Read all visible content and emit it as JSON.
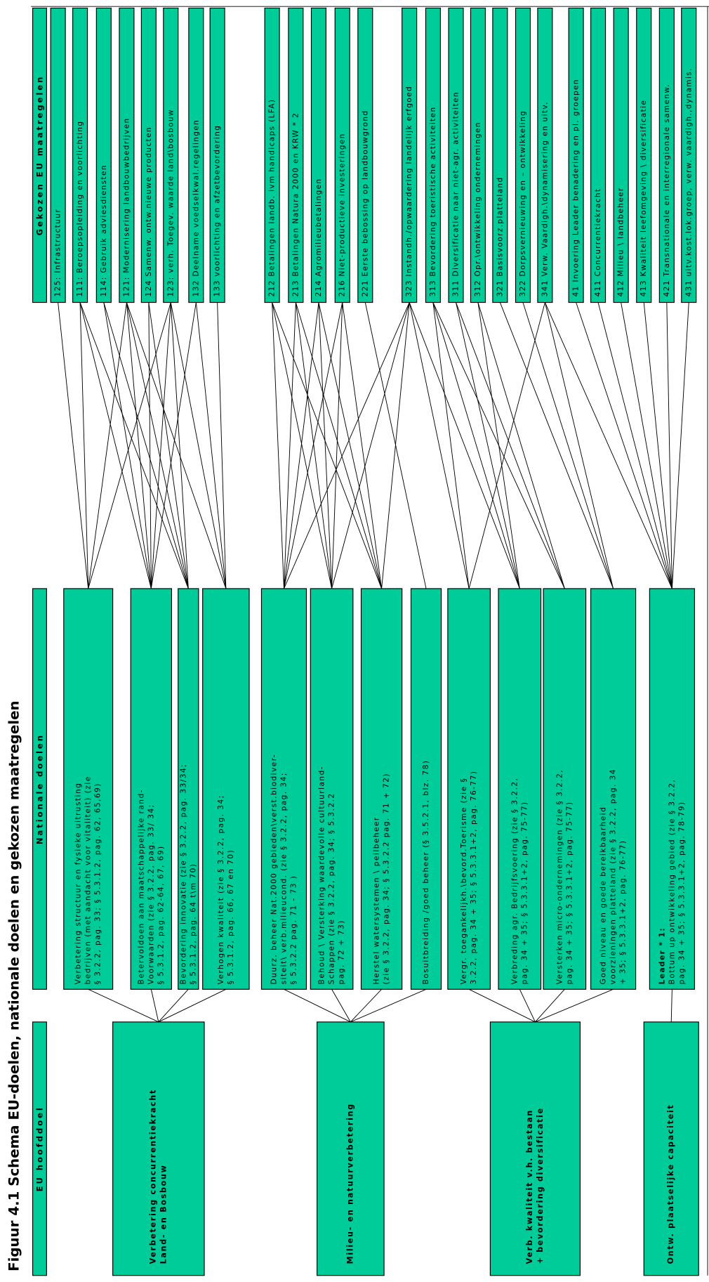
{
  "title": "Figuur 4.1 Schema EU-doelen, nationale doelen en gekozen maatregelen",
  "headers": {
    "eu_hoofddoel": "EU hoofddoel",
    "nationale_doelen": "Nationale doelen",
    "gekozen_maatregelen": "Gekozen EU maatregelen"
  },
  "hoofddoelen": [
    {
      "lines": [
        "Verbetering concurrentiekracht",
        "Land- en Bosbouw"
      ]
    },
    {
      "lines": [
        "Milieu- en natuurverbetering"
      ]
    },
    {
      "lines": [
        "Verb. kwaliteit v.h. bestaan",
        "+ bevordering diversificatie"
      ]
    },
    {
      "lines": [
        "Ontw. plaatselijke capaciteit"
      ]
    }
  ],
  "nationale_doelen": [
    {
      "lines": [
        "Verbetering structuur en fysieke uitrusting",
        "bedrijven (met aandacht voor vitaliteit) (zie",
        "§ 3.2.2, pag. 33; § 5.3.1.2, pag. 62, 65,69)"
      ]
    },
    {
      "lines": [
        "Betervoldoen aan maatschappelijke rand-",
        "Voorwaarden (zie § 3.2.2, pag. 33/ 34;",
        "§ 5.3.1.2, pag. 62-64, 67, 69)"
      ]
    },
    {
      "lines": [
        "Bevordering innovatie (zie § 3.2.2, pag. 33/34;",
        "§ 5.3.1.2, pag. 64 t\\m 70)"
      ]
    },
    {
      "lines": [
        "Verhogen kwaliteit (zie § 3.2.2, pag. 34;",
        "§ 5.3.1.2, pag. 66, 67 en 70)"
      ]
    },
    {
      "lines": [
        "Duurz. beheer Nat.2000 gebieden\\verst.biodiver-",
        "siteit\\ verb.milieucond. (zie § 3.2.2, pag. 34;",
        "§ 5.3.2.2 pag. 71 - 73 )"
      ]
    },
    {
      "lines": [
        "Behoud \\ Versterking waardevolle cultuurland-",
        "Schappen (zie § 3.2.2, pag. 34; § 5.3.2.2",
        "pag. 72 + 73)"
      ]
    },
    {
      "lines": [
        "Herstel watersystemen \\ peilbeheer",
        "(zie § 3.2.2, pag. 34; § 5.3.2.2 pag. 71 + 72)"
      ]
    },
    {
      "lines": [
        "Bosuitbreiding /goed beheer (§ 3.5.2.1, blz. 78)"
      ]
    },
    {
      "lines": [
        "Vergr. toegankelijkh.\\bevord.Toerisme (zie §",
        "3.2.2, pag. 34 + 35; § 5.3.3.1+2, pag. 76-77)"
      ]
    },
    {
      "lines": [
        "Verbreding agr. Bedrijfsvoering (zie § 3.2.2,",
        "pag. 34 + 35; § 5.3.3.1+2, pag. 75-77)"
      ]
    },
    {
      "lines": [
        "Versterken micro-ondernemingen (zie § 3.2.2,",
        "pag. 34 + 35; § 5.3.3.1+2, pag. 75-77)"
      ]
    },
    {
      "lines": [
        "Goed niveau en goede bereikbaarheid",
        "voorzieningen platteland  (zie § 3.2.2, pag. 34",
        "+ 35; § 5.3.3.1+2, pag. 76-77)"
      ]
    },
    {
      "lines": [
        "Leader * 1:",
        "Bottum up ontwikkeling gebied (zie § 3.2.2,",
        "pag. 34 + 35; § 5.3.3.1+2, pag. 78-79)"
      ]
    }
  ],
  "maatregelen": [
    "125: Infrastructuur",
    "111: Beroepsopleiding en voorlichting",
    "114: Gebruik adviesdiensten",
    "121: Modernisering landbouwbedrijven",
    "124 Samenw. ontw.nieuwe producten",
    "123: verh. Toegev. waarde land\\bosbouw",
    "132 Deelname voedselkwal.regelingen",
    "133 voorlichting en afzetbevordering",
    "212 Betalingen landb. ivm handicaps (LFA)",
    "213 Betalingen Natura 2000 en KRW * 2",
    "214 Agromilieubetalingen",
    "216 Niet-productieve investeringen",
    "221 Eerste bebossing op landbouwgrond",
    "323 Instandh./opwaardering landelijk erfgoed",
    "313 Bevordering toeristische activiteiten",
    "311 Diversificatie naar niet-agr. activiteiten",
    "312 Opr.\\ontwikkeling ondernemingen",
    "321 Basisvoorz.platteland",
    "322 Dorpsvernieuwing en – ontwikkeling",
    "341 Verw. Vaardigh.\\dynamisering en uitv.",
    "41 Invoering Leader benadering en pl. groepen",
    "411 Concurrentiekracht",
    "412 Milieu \\ landbeheer",
    "413 Kwaliteit leefomgeving \\ diversificatie",
    "421 Transnationale en interregionale samenw.",
    "431 uitv.kost.lok.groep, verw. vaardigh.,dynamis."
  ]
}
